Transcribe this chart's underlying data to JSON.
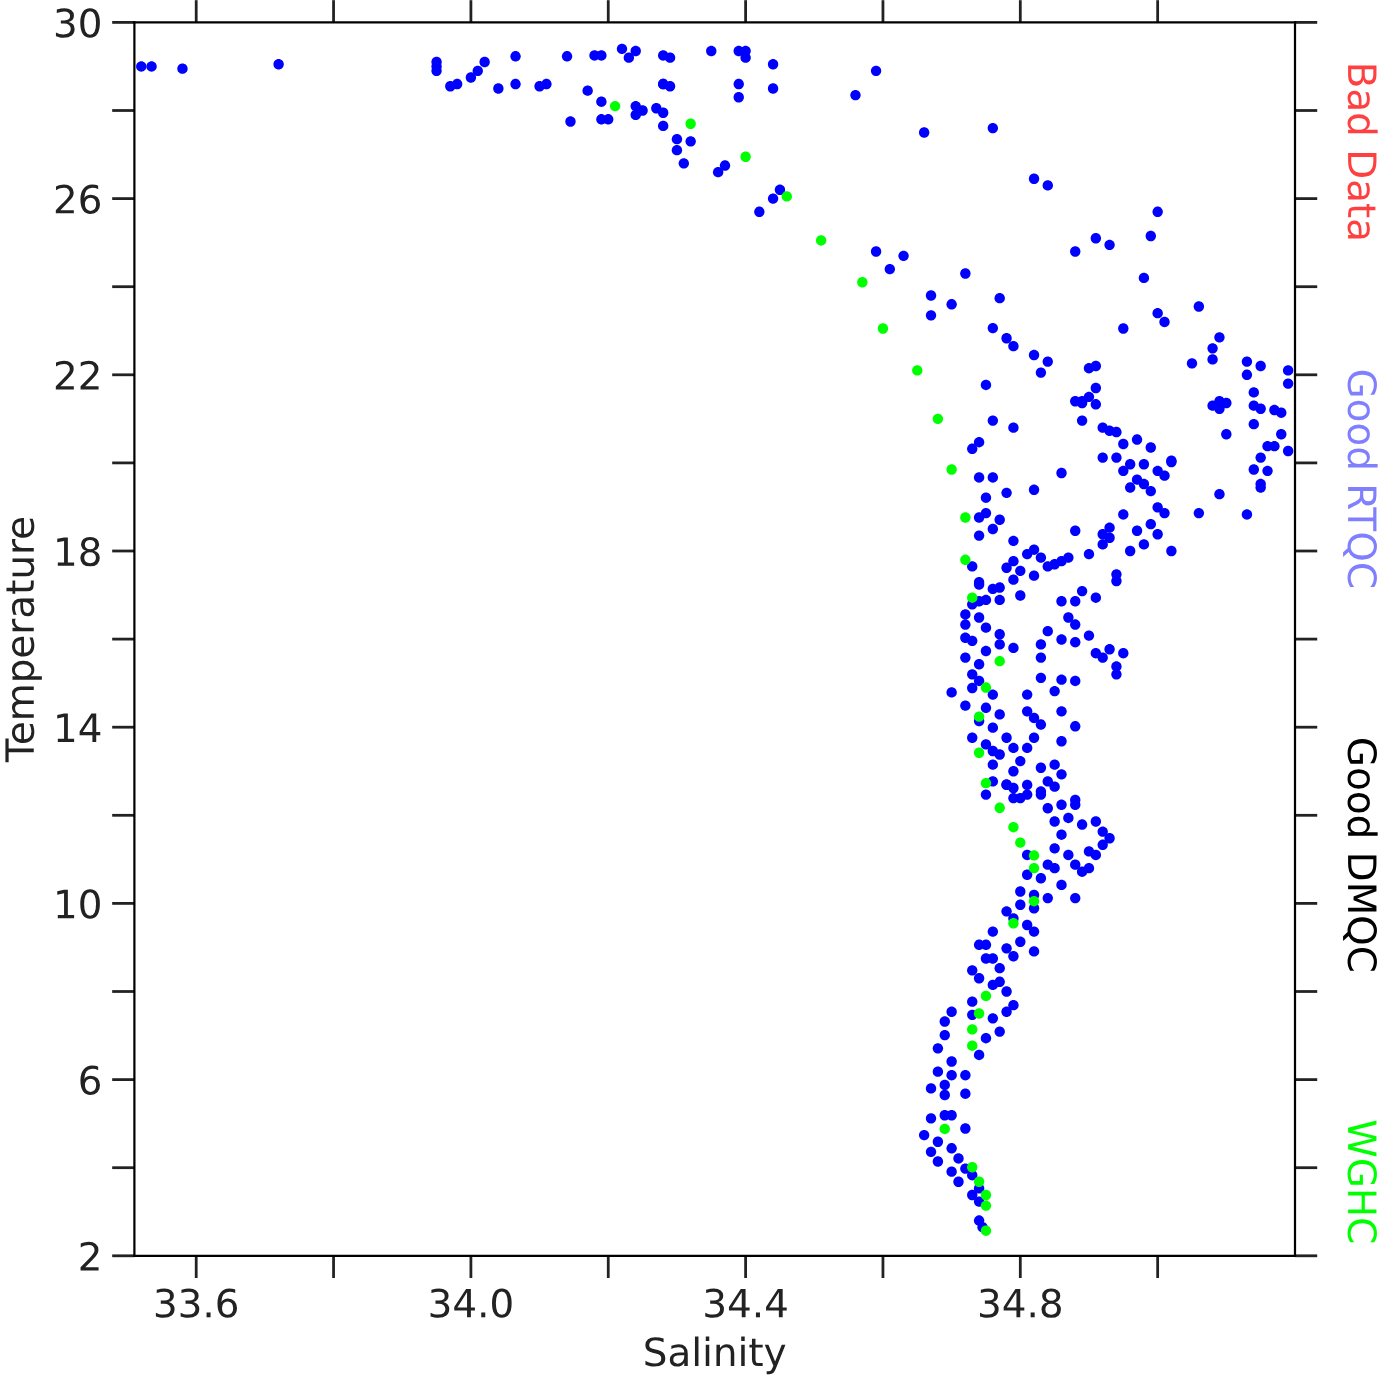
{
  "chart_data": {
    "type": "scatter",
    "xlabel": "Salinity",
    "ylabel": "Temperature",
    "annotations": [
      "Bad Data",
      "Good RTQC",
      "Good DMQC"
    ],
    "xlim": [
      33.51,
      35.2
    ],
    "ylim": [
      2,
      30
    ],
    "xticks": [
      33.6,
      {
        "value": 33.8,
        "label": null
      },
      {
        "value": 34,
        "label": "34.0"
      },
      {
        "value": 34.2,
        "label": null
      },
      34.4,
      {
        "value": 34.6,
        "label": null
      },
      34.8,
      {
        "value": 35.0,
        "label": null
      }
    ],
    "yticks": [
      2,
      {
        "value": 4,
        "label": null
      },
      6,
      {
        "value": 8,
        "label": null
      },
      10,
      {
        "value": 12,
        "label": null
      },
      14,
      {
        "value": 16,
        "label": null
      },
      18,
      {
        "value": 20,
        "label": null
      },
      22,
      {
        "value": 24,
        "label": null
      },
      26,
      {
        "value": 28,
        "label": null
      },
      30
    ],
    "grid": false,
    "legend": "right",
    "marker": "circle",
    "series": [
      {
        "color": "#0000ff",
        "x": [
          33.52,
          33.535,
          33.58,
          33.72,
          33.95,
          33.95,
          33.95,
          33.97,
          33.98,
          34.0,
          34.01,
          34.02,
          34.04,
          34.065,
          34.065,
          34.1,
          34.11,
          34.14,
          34.145,
          34.17,
          34.18,
          34.19,
          34.19,
          34.19,
          34.2,
          34.22,
          34.23,
          34.24,
          34.24,
          34.24,
          34.25,
          34.27,
          34.28,
          34.28,
          34.29,
          34.28,
          34.28,
          34.29,
          34.28,
          34.3,
          34.32,
          34.3,
          34.31,
          34.35,
          34.36,
          34.37,
          34.39,
          34.39,
          34.39,
          34.4,
          34.4,
          34.44,
          34.44,
          34.42,
          34.44,
          34.45,
          34.56,
          34.59,
          34.59,
          34.61,
          34.63,
          34.66,
          34.67,
          34.67,
          34.7,
          34.72,
          34.76,
          34.76,
          34.77,
          34.78,
          34.79,
          34.82,
          34.83,
          34.84,
          34.75,
          34.82,
          34.84,
          34.88,
          34.91,
          34.93,
          34.95,
          34.98,
          34.99,
          35.0,
          35.0,
          35.01,
          35.06,
          35.05,
          35.08,
          35.09,
          35.08,
          35.13,
          35.15,
          35.13,
          35.14,
          35.19,
          34.88,
          34.89,
          34.9,
          34.91,
          34.9,
          34.91,
          35.08,
          35.09,
          35.14,
          35.17,
          35.19,
          35.09,
          35.1,
          35.15,
          35.14,
          35.18,
          35.1,
          35.16,
          35.17,
          35.18,
          35.19,
          35.15,
          35.14,
          35.16,
          35.15,
          35.15,
          35.09,
          35.13,
          35.06,
          34.89,
          34.91,
          34.89,
          34.92,
          34.93,
          34.94,
          34.95,
          34.97,
          34.99,
          34.92,
          34.94,
          34.96,
          34.98,
          34.95,
          34.97,
          35.0,
          35.02,
          35.02,
          35.01,
          34.98,
          34.96,
          34.99,
          35.0,
          35.01,
          34.95,
          34.99,
          34.97,
          34.93,
          34.92,
          35.0,
          35.02,
          34.98,
          34.96,
          34.93,
          34.92,
          34.9,
          34.88,
          34.87,
          34.86,
          34.85,
          34.84,
          34.83,
          34.81,
          34.82,
          34.79,
          34.79,
          34.78,
          34.8,
          34.82,
          34.79,
          34.77,
          34.8,
          34.77,
          34.76,
          34.74,
          34.74,
          34.94,
          34.94,
          34.91,
          34.89,
          34.88,
          34.86,
          34.87,
          34.88,
          34.9,
          34.91,
          34.92,
          34.93,
          34.95,
          34.94,
          34.94,
          34.88,
          34.86,
          34.84,
          34.83,
          34.83,
          34.83,
          34.85,
          34.86,
          34.88,
          34.86,
          34.88,
          34.86,
          34.83,
          34.81,
          34.81,
          34.82,
          34.82,
          34.83,
          34.85,
          34.84,
          34.86,
          34.81,
          34.8,
          34.79,
          34.83,
          34.88,
          34.74,
          34.76,
          34.75,
          34.78,
          34.82,
          34.86,
          34.76,
          34.79,
          34.74,
          34.73,
          34.75,
          34.74,
          34.77,
          34.74,
          34.76,
          34.73,
          34.74,
          34.75,
          34.73,
          34.72,
          34.72,
          34.72,
          34.73,
          34.74,
          34.75,
          34.75,
          34.72,
          34.74,
          34.77,
          34.77,
          34.79,
          34.73,
          34.74,
          34.7,
          34.72,
          34.73,
          34.76,
          34.75,
          34.77,
          34.76,
          34.74,
          34.73,
          34.75,
          34.76,
          34.77,
          34.79,
          34.78,
          34.76,
          34.76,
          34.78,
          34.75,
          34.79,
          34.81,
          34.78,
          34.79,
          34.81,
          34.83,
          34.85,
          34.8,
          34.84,
          34.86,
          34.88,
          34.85,
          34.87,
          34.89,
          34.91,
          34.92,
          34.93,
          34.92,
          34.91,
          34.9,
          34.89,
          34.88,
          34.9,
          34.86,
          34.85,
          34.87,
          34.84,
          34.85,
          34.81,
          34.81,
          34.83,
          34.86,
          34.88,
          34.84,
          34.82,
          34.8,
          34.82,
          34.8,
          34.78,
          34.79,
          34.81,
          34.82,
          34.8,
          34.82,
          34.79,
          34.78,
          34.76,
          34.75,
          34.74,
          34.75,
          34.76,
          34.73,
          34.74,
          34.76,
          34.77,
          34.77,
          34.78,
          34.79,
          34.78,
          34.76,
          34.77,
          34.75,
          34.74,
          34.73,
          34.73,
          34.7,
          34.69,
          34.69,
          34.68,
          34.7,
          34.68,
          34.67,
          34.69,
          34.7,
          34.72,
          34.72,
          34.69,
          34.69,
          34.7,
          34.67,
          34.66,
          34.68,
          34.72,
          34.7,
          34.67,
          34.71,
          34.72,
          34.73,
          34.74,
          34.74,
          34.73,
          34.71,
          34.7,
          34.68,
          34.74,
          34.745
        ],
        "values": [
          29.0,
          29.0,
          28.95,
          29.05,
          29.0,
          29.1,
          28.9,
          28.55,
          28.6,
          28.75,
          28.9,
          29.1,
          28.5,
          29.23,
          28.6,
          28.55,
          28.6,
          29.23,
          27.75,
          28.45,
          29.25,
          29.25,
          28.2,
          27.8,
          27.8,
          29.4,
          29.2,
          29.35,
          28.1,
          27.9,
          28.0,
          28.05,
          27.95,
          29.25,
          29.2,
          28.6,
          28.6,
          28.55,
          27.65,
          27.35,
          27.3,
          27.1,
          26.8,
          29.35,
          26.6,
          26.75,
          28.6,
          28.3,
          29.35,
          29.35,
          29.2,
          28.5,
          29.05,
          25.7,
          26.0,
          26.2,
          28.35,
          28.9,
          24.8,
          24.4,
          24.7,
          27.5,
          23.8,
          23.35,
          23.6,
          24.3,
          27.6,
          23.06,
          23.74,
          22.83,
          22.65,
          22.45,
          22.05,
          22.3,
          21.77,
          26.45,
          26.3,
          24.8,
          25.1,
          24.95,
          23.05,
          24.2,
          25.15,
          25.7,
          23.4,
          23.2,
          23.55,
          22.26,
          22.35,
          22.85,
          22.6,
          22.3,
          22.2,
          22.0,
          21.6,
          22.1,
          21.4,
          21.4,
          21.5,
          21.7,
          22.15,
          22.2,
          21.3,
          21.4,
          21.3,
          21.2,
          21.8,
          21.23,
          21.36,
          21.23,
          20.88,
          21.14,
          20.65,
          20.38,
          20.38,
          20.65,
          20.27,
          20.12,
          19.85,
          19.82,
          19.52,
          19.44,
          19.29,
          18.83,
          18.86,
          21.36,
          21.33,
          20.96,
          20.8,
          20.73,
          20.7,
          20.43,
          20.53,
          20.35,
          20.12,
          20.12,
          19.97,
          19.97,
          19.82,
          19.62,
          19.82,
          20.02,
          20.05,
          19.71,
          19.52,
          19.44,
          19.36,
          18.99,
          18.86,
          18.83,
          18.61,
          18.46,
          18.53,
          18.38,
          18.38,
          18.0,
          18.15,
          18.0,
          18.3,
          18.15,
          17.93,
          18.46,
          17.85,
          17.77,
          17.7,
          17.65,
          17.85,
          17.93,
          18.03,
          18.23,
          17.77,
          17.62,
          17.55,
          17.44,
          17.35,
          17.17,
          16.99,
          16.89,
          17.14,
          17.24,
          17.29,
          17.47,
          17.32,
          16.94,
          17.09,
          16.86,
          16.86,
          16.49,
          16.33,
          16.08,
          15.68,
          15.58,
          15.77,
          15.68,
          15.38,
          15.2,
          15.93,
          15.99,
          16.18,
          15.88,
          15.58,
          15.12,
          14.82,
          15.08,
          15.05,
          14.36,
          14.02,
          13.68,
          14.06,
          14.74,
          14.36,
          14.21,
          13.76,
          13.08,
          13.15,
          12.77,
          12.93,
          13.53,
          13.23,
          13.0,
          12.47,
          12.35,
          19.67,
          19.67,
          19.21,
          19.32,
          19.39,
          19.77,
          20.96,
          20.8,
          20.47,
          20.32,
          18.86,
          18.76,
          18.71,
          18.35,
          18.5,
          17.65,
          16.86,
          16.89,
          16.79,
          16.56,
          16.33,
          16.03,
          15.96,
          16.49,
          16.26,
          15.73,
          15.58,
          15.43,
          16.11,
          15.88,
          15.8,
          15.2,
          15.05,
          14.79,
          14.49,
          14.89,
          14.74,
          14.44,
          14.29,
          13.99,
          14.14,
          13.76,
          13.61,
          13.46,
          13.38,
          13.53,
          13.76,
          13.15,
          12.77,
          12.7,
          12.47,
          12.39,
          12.47,
          12.69,
          12.62,
          12.69,
          12.54,
          12.65,
          12.39,
          12.16,
          12.24,
          12.24,
          11.86,
          11.94,
          11.79,
          11.86,
          11.63,
          11.48,
          11.33,
          11.1,
          10.8,
          10.72,
          10.88,
          11.18,
          11.56,
          11.25,
          11.1,
          10.88,
          10.8,
          11.1,
          10.65,
          10.57,
          10.42,
          10.12,
          10.12,
          10.19,
          10.27,
          9.89,
          9.97,
          9.82,
          9.66,
          9.51,
          9.36,
          9.13,
          8.91,
          8.8,
          8.98,
          9.36,
          9.06,
          9.06,
          8.75,
          8.75,
          8.48,
          8.3,
          8.15,
          8.22,
          8.53,
          8.0,
          7.69,
          7.54,
          7.39,
          7.09,
          6.94,
          6.56,
          7.77,
          7.47,
          7.54,
          7.32,
          7.01,
          6.71,
          6.41,
          6.18,
          5.8,
          5.88,
          6.1,
          6.1,
          5.68,
          5.65,
          5.19,
          5.19,
          5.12,
          4.74,
          4.59,
          4.89,
          4.44,
          4.36,
          4.21,
          3.98,
          3.83,
          3.53,
          3.23,
          3.38,
          3.68,
          3.91,
          4.14,
          2.8,
          2.65
        ]
      },
      {
        "name": "WGHC",
        "color": "#00ff00",
        "x": [
          34.21,
          34.32,
          34.4,
          34.46,
          34.51,
          34.57,
          34.6,
          34.65,
          34.68,
          34.7,
          34.72,
          34.72,
          34.73,
          34.77,
          34.75,
          34.74,
          34.74,
          34.75,
          34.77,
          34.79,
          34.8,
          34.82,
          34.82,
          34.82,
          34.79,
          34.75,
          34.74,
          34.73,
          34.73,
          34.69,
          34.73,
          34.74,
          34.75,
          34.75,
          34.75
        ],
        "values": [
          28.1,
          27.7,
          26.95,
          26.05,
          25.05,
          24.1,
          23.05,
          22.1,
          21.0,
          19.85,
          18.76,
          17.8,
          16.94,
          15.5,
          14.9,
          14.24,
          13.42,
          12.73,
          12.17,
          11.73,
          11.38,
          11.09,
          10.8,
          10.05,
          9.55,
          7.9,
          7.5,
          7.14,
          6.77,
          4.88,
          4.01,
          3.68,
          3.38,
          3.14,
          2.57
        ]
      }
    ]
  }
}
